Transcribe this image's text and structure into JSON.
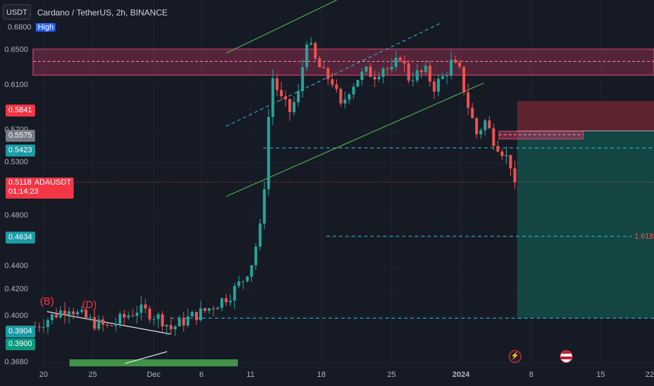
{
  "header": {
    "currency": "USDT",
    "symbol_title": "Cardano / TetherUS, 2h, BINANCE"
  },
  "price_axis": {
    "ticks": [
      "0.6500",
      "0.6100",
      "0.5700",
      "0.5300",
      "0.4800",
      "0.4400",
      "0.4200",
      "0.4000",
      "0.3680"
    ],
    "top_tag_value": "0.6800",
    "top_tag_label": "High"
  },
  "price_tags": {
    "red_top": "0.5841",
    "gray": "0.5575",
    "teal_top": "0.5423",
    "current_price": "0.5118",
    "current_symbol": "ADAUSDT",
    "countdown": "01:14:23",
    "teal_mid": "0.4634",
    "teal_low": "0.3904",
    "green_low": "0.3900"
  },
  "time_axis": {
    "labels": [
      "20",
      "25",
      "Dec",
      "6",
      "11",
      "18",
      "25",
      "2024",
      "8",
      "15",
      "22"
    ]
  },
  "annotations": {
    "wave_b": "(B)",
    "wave_d": "(D)",
    "fib_label": "1.618"
  },
  "colors": {
    "background": "#161a25",
    "up": "#26a69a",
    "down": "#ef5350",
    "resistance_zone": "#b2345a",
    "channel": "#4caf50",
    "teal_line": "#26c6da"
  },
  "chart_data": {
    "type": "candlestick",
    "title": "",
    "symbol": "Cardano / TetherUS, 2h, BINANCE",
    "x_labels": [
      "20",
      "25",
      "Dec",
      "6",
      "11",
      "18",
      "25",
      "2024",
      "8",
      "15",
      "22"
    ],
    "ylim": [
      0.364,
      0.69
    ],
    "price_path": [
      [
        0,
        0.383
      ],
      [
        4,
        0.392
      ],
      [
        8,
        0.401
      ],
      [
        10,
        0.394
      ],
      [
        14,
        0.386
      ],
      [
        17,
        0.382
      ],
      [
        21,
        0.391
      ],
      [
        24,
        0.398
      ],
      [
        27,
        0.395
      ],
      [
        30,
        0.389
      ],
      [
        32,
        0.381
      ],
      [
        34,
        0.386
      ],
      [
        37,
        0.392
      ],
      [
        40,
        0.397
      ],
      [
        43,
        0.404
      ],
      [
        46,
        0.412
      ],
      [
        49,
        0.425
      ],
      [
        51,
        0.44
      ],
      [
        53,
        0.47
      ],
      [
        54,
        0.51
      ],
      [
        55,
        0.57
      ],
      [
        56,
        0.605
      ],
      [
        58,
        0.585
      ],
      [
        60,
        0.575
      ],
      [
        62,
        0.59
      ],
      [
        64,
        0.64
      ],
      [
        66,
        0.62
      ],
      [
        68,
        0.608
      ],
      [
        70,
        0.602
      ],
      [
        72,
        0.578
      ],
      [
        74,
        0.595
      ],
      [
        76,
        0.605
      ],
      [
        78,
        0.61
      ],
      [
        80,
        0.608
      ],
      [
        82,
        0.615
      ],
      [
        84,
        0.61
      ],
      [
        86,
        0.625
      ],
      [
        88,
        0.605
      ],
      [
        90,
        0.608
      ],
      [
        92,
        0.61
      ],
      [
        94,
        0.597
      ],
      [
        96,
        0.605
      ],
      [
        98,
        0.618
      ],
      [
        100,
        0.61
      ],
      [
        102,
        0.58
      ],
      [
        104,
        0.555
      ],
      [
        106,
        0.566
      ],
      [
        108,
        0.55
      ],
      [
        110,
        0.54
      ],
      [
        112,
        0.528
      ],
      [
        113,
        0.5118
      ]
    ],
    "levels": {
      "resistance_zone": [
        0.6072,
        0.6305
      ],
      "resistance_mid": 0.6195,
      "high_line": 0.68,
      "level_0_5423": 0.5423,
      "level_0_4634": 0.4634,
      "level_0_3904": 0.3904,
      "short_target_zone": [
        0.3904,
        0.5575
      ],
      "short_stop_zone": [
        0.5575,
        0.5841
      ]
    },
    "grid": true
  }
}
